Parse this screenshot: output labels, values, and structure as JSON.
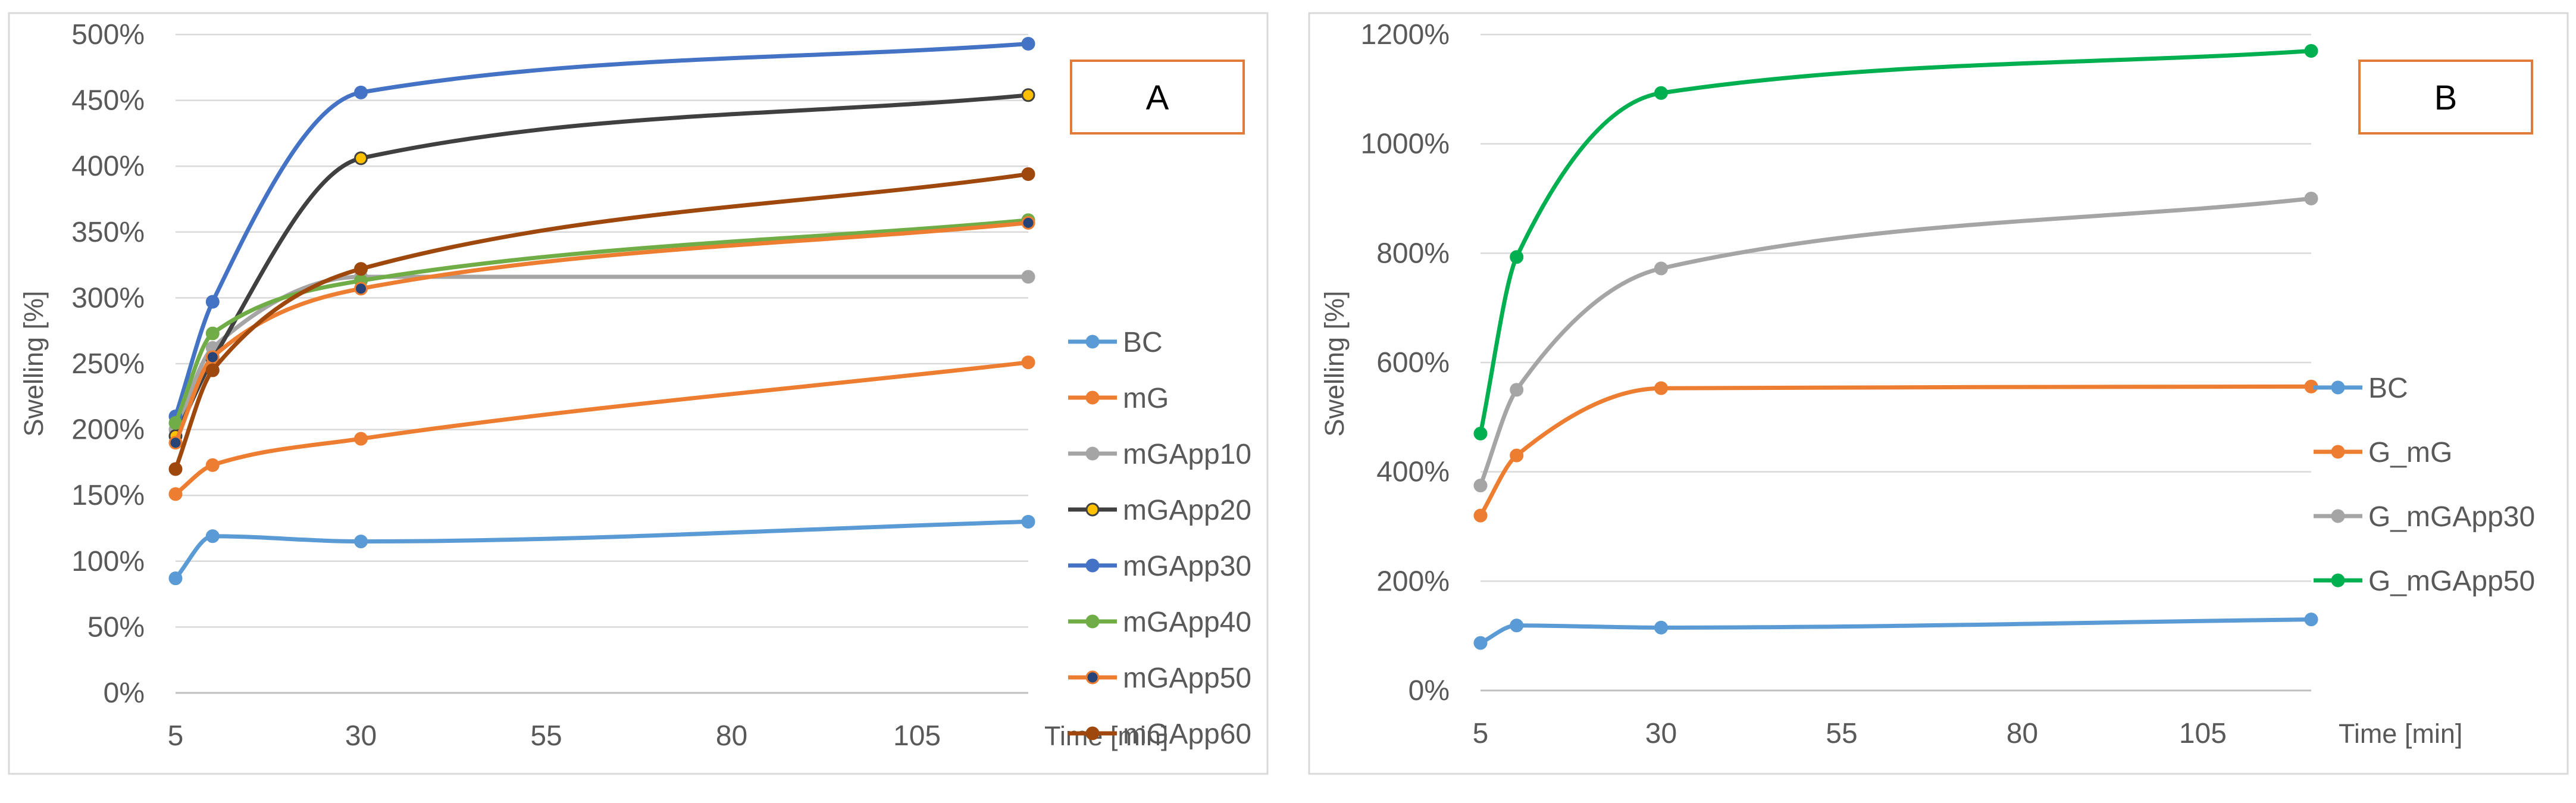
{
  "chart_data": [
    {
      "type": "line",
      "panel_label": "A",
      "xlabel": "Time [min]",
      "ylabel": "Swelling [%]",
      "x": [
        5,
        10,
        30,
        120
      ],
      "xticks": [
        5,
        30,
        55,
        80,
        105
      ],
      "xlim": [
        5,
        120
      ],
      "ylim": [
        0,
        500
      ],
      "ytick_step": 50,
      "ytick_labels": [
        "0%",
        "50%",
        "100%",
        "150%",
        "200%",
        "250%",
        "300%",
        "350%",
        "400%",
        "450%",
        "500%"
      ],
      "grid": true,
      "legend_position": "right",
      "series": [
        {
          "name": "BC",
          "color": "#5b9bd5",
          "marker_fill": "#5b9bd5",
          "values": [
            87,
            119,
            115,
            130
          ]
        },
        {
          "name": "mG",
          "color": "#ed7d31",
          "marker_fill": "#ed7d31",
          "values": [
            151,
            173,
            193,
            251
          ]
        },
        {
          "name": "mGApp10",
          "color": "#a5a5a5",
          "marker_fill": "#a5a5a5",
          "values": [
            200,
            262,
            316,
            316
          ]
        },
        {
          "name": "mGApp20",
          "color": "#404040",
          "marker_fill": "#ffc000",
          "values": [
            195,
            253,
            406,
            454
          ]
        },
        {
          "name": "mGApp30",
          "color": "#4472c4",
          "marker_fill": "#4472c4",
          "values": [
            210,
            297,
            456,
            493
          ]
        },
        {
          "name": "mGApp40",
          "color": "#70ad47",
          "marker_fill": "#70ad47",
          "values": [
            205,
            273,
            313,
            359
          ]
        },
        {
          "name": "mGApp50",
          "color": "#ed7d31",
          "marker_fill": "#264478",
          "values": [
            190,
            255,
            307,
            357
          ]
        },
        {
          "name": "mGApp60",
          "color": "#9e480e",
          "marker_fill": "#9e480e",
          "values": [
            170,
            245,
            322,
            394
          ]
        }
      ]
    },
    {
      "type": "line",
      "panel_label": "B",
      "xlabel": "Time [min]",
      "ylabel": "Swelling [%]",
      "x": [
        5,
        10,
        30,
        120
      ],
      "xticks": [
        5,
        30,
        55,
        80,
        105
      ],
      "xlim": [
        5,
        120
      ],
      "ylim": [
        0,
        1200
      ],
      "ytick_step": 200,
      "ytick_labels": [
        "0%",
        "200%",
        "400%",
        "600%",
        "800%",
        "1000%",
        "1200%"
      ],
      "grid": true,
      "legend_position": "right",
      "series": [
        {
          "name": "BC",
          "color": "#5b9bd5",
          "marker_fill": "#5b9bd5",
          "values": [
            87,
            119,
            115,
            130
          ]
        },
        {
          "name": "G_mG",
          "color": "#ed7d31",
          "marker_fill": "#ed7d31",
          "values": [
            320,
            430,
            553,
            556
          ]
        },
        {
          "name": "G_mGApp30",
          "color": "#a5a5a5",
          "marker_fill": "#a5a5a5",
          "values": [
            375,
            550,
            772,
            900
          ]
        },
        {
          "name": "G_mGApp50",
          "color": "#00b050",
          "marker_fill": "#00b050",
          "values": [
            470,
            793,
            1093,
            1170
          ]
        }
      ]
    }
  ]
}
